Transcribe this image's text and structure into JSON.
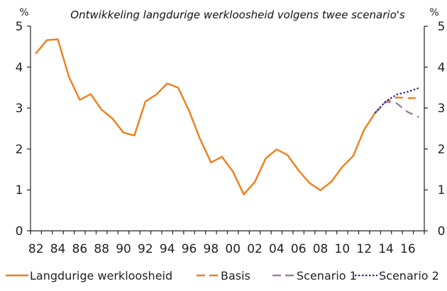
{
  "chart_data": {
    "type": "line",
    "title": "Ontwikkeling langdurige werkloosheid volgens twee scenario's",
    "ylabel_left": "%",
    "ylabel_right": "%",
    "xlabel": "",
    "xlim": [
      1981.5,
      2017.5
    ],
    "ylim": [
      0,
      5
    ],
    "yticks": [
      0,
      1,
      2,
      3,
      4,
      5
    ],
    "xtick_labels": [
      "82",
      "84",
      "86",
      "88",
      "90",
      "92",
      "94",
      "96",
      "98",
      "00",
      "02",
      "04",
      "06",
      "08",
      "10",
      "12",
      "14",
      "16"
    ],
    "xtick_years": [
      1982,
      1984,
      1986,
      1988,
      1990,
      1992,
      1994,
      1996,
      1998,
      2000,
      2002,
      2004,
      2006,
      2008,
      2010,
      2012,
      2014,
      2016
    ],
    "grid": false,
    "legend": "bottom",
    "series": [
      {
        "name": "Langdurige werkloosheid",
        "style": "solid",
        "color": "#f07d1a",
        "x": [
          1982,
          1983,
          1984,
          1985,
          1986,
          1987,
          1988,
          1989,
          1990,
          1991,
          1992,
          1993,
          1994,
          1995,
          1996,
          1997,
          1998,
          1999,
          2000,
          2001,
          2002,
          2003,
          2004,
          2005,
          2006,
          2007,
          2008,
          2009,
          2010,
          2011,
          2012,
          2013
        ],
        "y": [
          4.34,
          4.66,
          4.68,
          3.77,
          3.2,
          3.34,
          2.96,
          2.74,
          2.4,
          2.33,
          3.16,
          3.33,
          3.6,
          3.5,
          2.93,
          2.24,
          1.67,
          1.81,
          1.45,
          0.89,
          1.19,
          1.77,
          1.99,
          1.85,
          1.48,
          1.17,
          0.99,
          1.2,
          1.56,
          1.83,
          2.47,
          2.88
        ]
      },
      {
        "name": "Basis",
        "style": "dashed",
        "color": "#f07d1a",
        "x": [
          2013,
          2014,
          2015,
          2016,
          2017
        ],
        "y": [
          2.88,
          3.15,
          3.26,
          3.24,
          3.25
        ]
      },
      {
        "name": "Scenario 1",
        "style": "dashed",
        "color": "#a07fa0",
        "x": [
          2013,
          2014,
          2015,
          2016,
          2017
        ],
        "y": [
          2.88,
          3.16,
          3.11,
          2.9,
          2.78
        ]
      },
      {
        "name": "Scenario 2",
        "style": "dotted",
        "color": "#2a2a8a",
        "x": [
          2013,
          2014,
          2015,
          2016,
          2017
        ],
        "y": [
          2.88,
          3.17,
          3.33,
          3.4,
          3.49
        ]
      }
    ]
  }
}
